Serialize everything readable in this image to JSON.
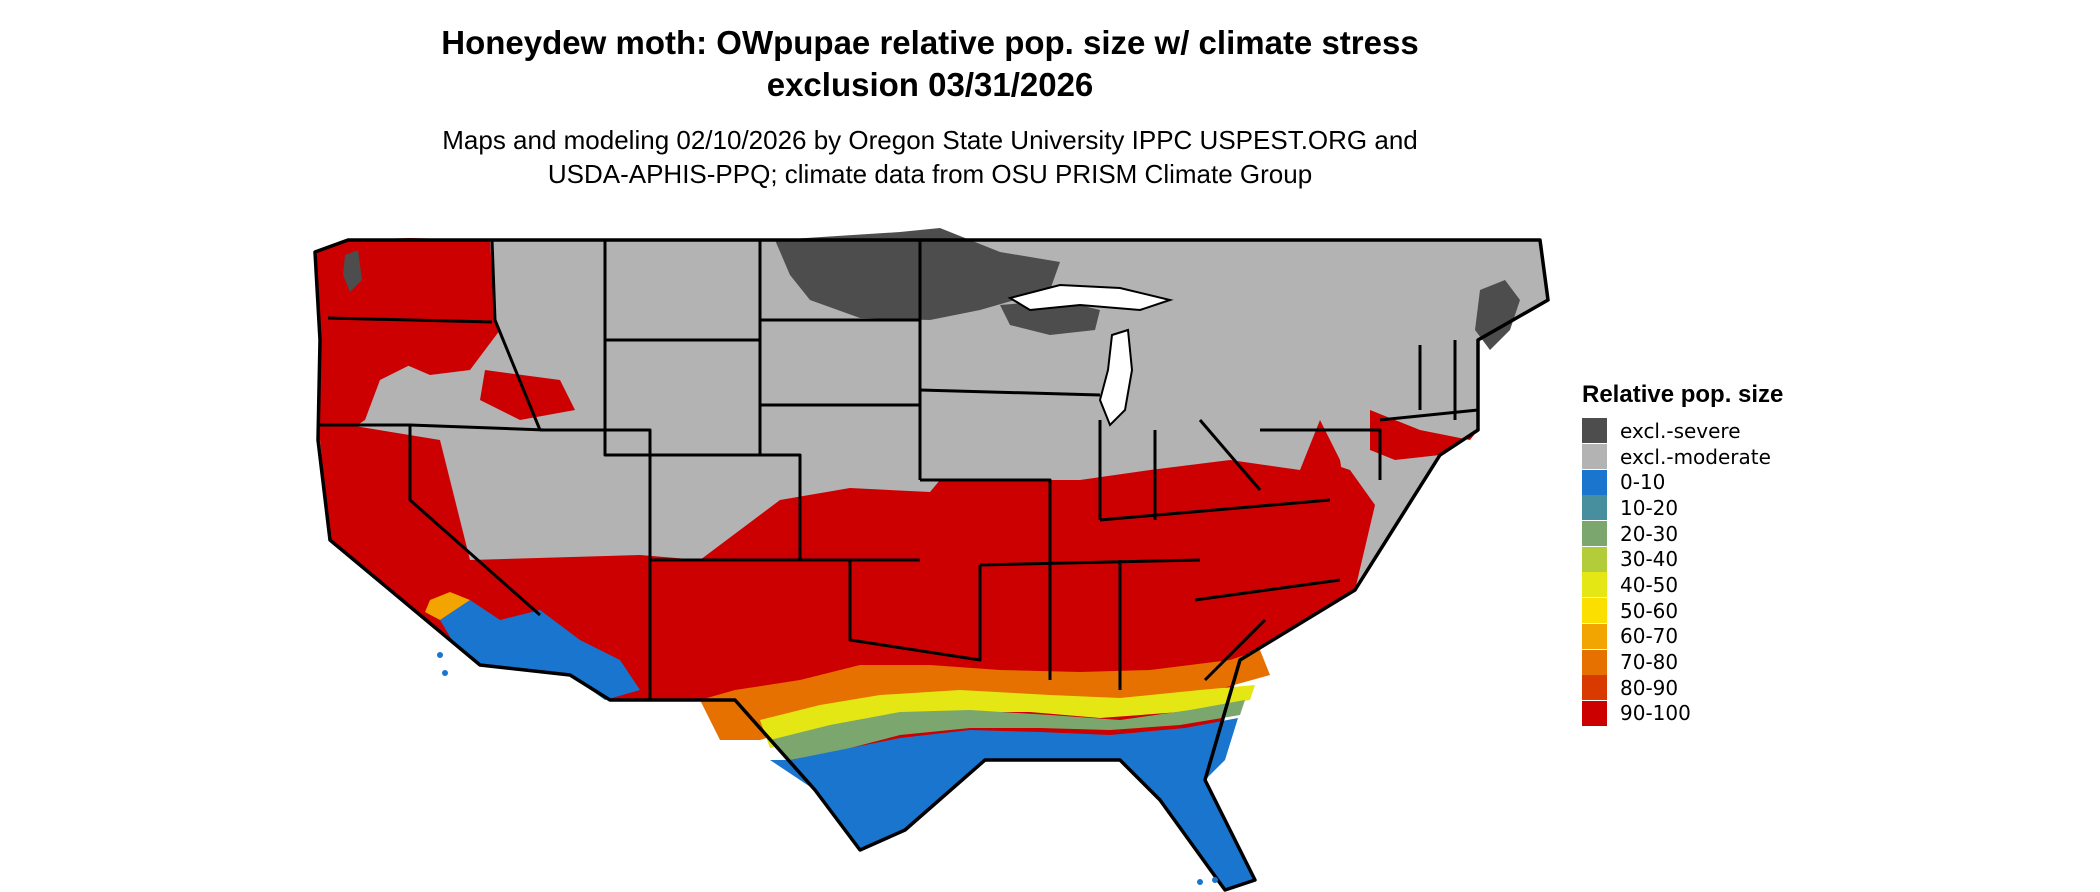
{
  "title": {
    "line1": "Honeydew moth: OWpupae relative pop. size w/ climate stress",
    "line2": "exclusion 03/31/2026"
  },
  "subtitle": {
    "line1": "Maps and modeling 02/10/2026 by Oregon State University IPPC USPEST.ORG and",
    "line2": "USDA-APHIS-PPQ; climate data from OSU PRISM Climate Group"
  },
  "legend": {
    "title": "Relative pop. size",
    "items": [
      {
        "label": "excl.-severe",
        "color": "#4d4d4d"
      },
      {
        "label": "excl.-moderate",
        "color": "#b3b3b3"
      },
      {
        "label": "0-10",
        "color": "#1a75cf"
      },
      {
        "label": "10-20",
        "color": "#478f9e"
      },
      {
        "label": "20-30",
        "color": "#7ba76f"
      },
      {
        "label": "30-40",
        "color": "#b3cc3a"
      },
      {
        "label": "40-50",
        "color": "#e5e714"
      },
      {
        "label": "50-60",
        "color": "#fadf00"
      },
      {
        "label": "60-70",
        "color": "#f2a500"
      },
      {
        "label": "70-80",
        "color": "#e67000"
      },
      {
        "label": "80-90",
        "color": "#d93a00"
      },
      {
        "label": "90-100",
        "color": "#cc0000"
      }
    ]
  },
  "map": {
    "region": "Contiguous United States",
    "colors": {
      "severe": "#4d4d4d",
      "moderate": "#b3b3b3",
      "low": "#1a75cf",
      "high": "#cc0000",
      "border": "#000000",
      "lake": "#ffffff"
    }
  }
}
